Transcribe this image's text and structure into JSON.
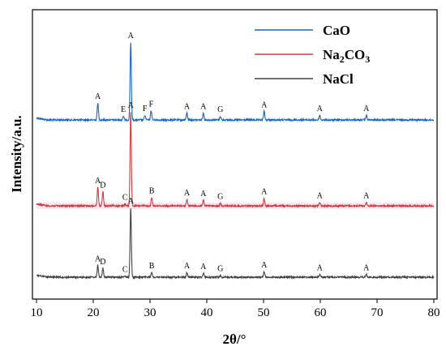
{
  "chart_data": {
    "type": "line",
    "xlabel": "2θ/°",
    "ylabel": "Intensity/a.u.",
    "xlim": [
      10,
      80
    ],
    "xticks": [
      10,
      20,
      30,
      40,
      50,
      60,
      70,
      80
    ],
    "y_ticks_shown": false,
    "grid": false,
    "legend_position": "top-right",
    "series": [
      {
        "name": "CaO",
        "color": "#1565c8",
        "peaks": [
          {
            "x": 20.8,
            "h": 0.22,
            "label": "A"
          },
          {
            "x": 25.3,
            "h": 0.05,
            "label": "E"
          },
          {
            "x": 26.6,
            "h": 1.0,
            "label": "A"
          },
          {
            "x": 29.1,
            "h": 0.06,
            "label": "F"
          },
          {
            "x": 30.2,
            "h": 0.12,
            "label": "F"
          },
          {
            "x": 36.5,
            "h": 0.09,
            "label": "A"
          },
          {
            "x": 39.4,
            "h": 0.09,
            "label": "A"
          },
          {
            "x": 42.4,
            "h": 0.05,
            "label": "G"
          },
          {
            "x": 50.1,
            "h": 0.11,
            "label": "A"
          },
          {
            "x": 59.9,
            "h": 0.06,
            "label": "A"
          },
          {
            "x": 68.1,
            "h": 0.06,
            "label": "A"
          }
        ]
      },
      {
        "name": "Na2CO3",
        "name_main": "Na",
        "name_sub1": "2",
        "name_mid": "CO",
        "name_sub2": "3",
        "color": "#d03a3a",
        "peaks": [
          {
            "x": 20.8,
            "h": 0.2,
            "label": "A"
          },
          {
            "x": 21.7,
            "h": 0.15,
            "label": "D"
          },
          {
            "x": 25.6,
            "h": 0.02,
            "label": "C"
          },
          {
            "x": 26.6,
            "h": 1.0,
            "label": "A"
          },
          {
            "x": 30.3,
            "h": 0.09,
            "label": "B"
          },
          {
            "x": 36.5,
            "h": 0.07,
            "label": "A"
          },
          {
            "x": 39.4,
            "h": 0.06,
            "label": "A"
          },
          {
            "x": 42.4,
            "h": 0.03,
            "label": "G"
          },
          {
            "x": 50.1,
            "h": 0.08,
            "label": "A"
          },
          {
            "x": 59.9,
            "h": 0.04,
            "label": "A"
          },
          {
            "x": 68.1,
            "h": 0.04,
            "label": "A"
          }
        ]
      },
      {
        "name": "NaCl",
        "color": "#404040",
        "peaks": [
          {
            "x": 20.8,
            "h": 0.17,
            "label": "A"
          },
          {
            "x": 21.7,
            "h": 0.13,
            "label": "D"
          },
          {
            "x": 25.6,
            "h": 0.02,
            "label": "C"
          },
          {
            "x": 26.6,
            "h": 1.0,
            "label": "A"
          },
          {
            "x": 30.3,
            "h": 0.07,
            "label": "B"
          },
          {
            "x": 36.5,
            "h": 0.07,
            "label": "A"
          },
          {
            "x": 39.4,
            "h": 0.06,
            "label": "A"
          },
          {
            "x": 42.4,
            "h": 0.03,
            "label": "G"
          },
          {
            "x": 50.1,
            "h": 0.08,
            "label": "A"
          },
          {
            "x": 59.9,
            "h": 0.04,
            "label": "A"
          },
          {
            "x": 68.1,
            "h": 0.04,
            "label": "A"
          }
        ]
      }
    ]
  }
}
